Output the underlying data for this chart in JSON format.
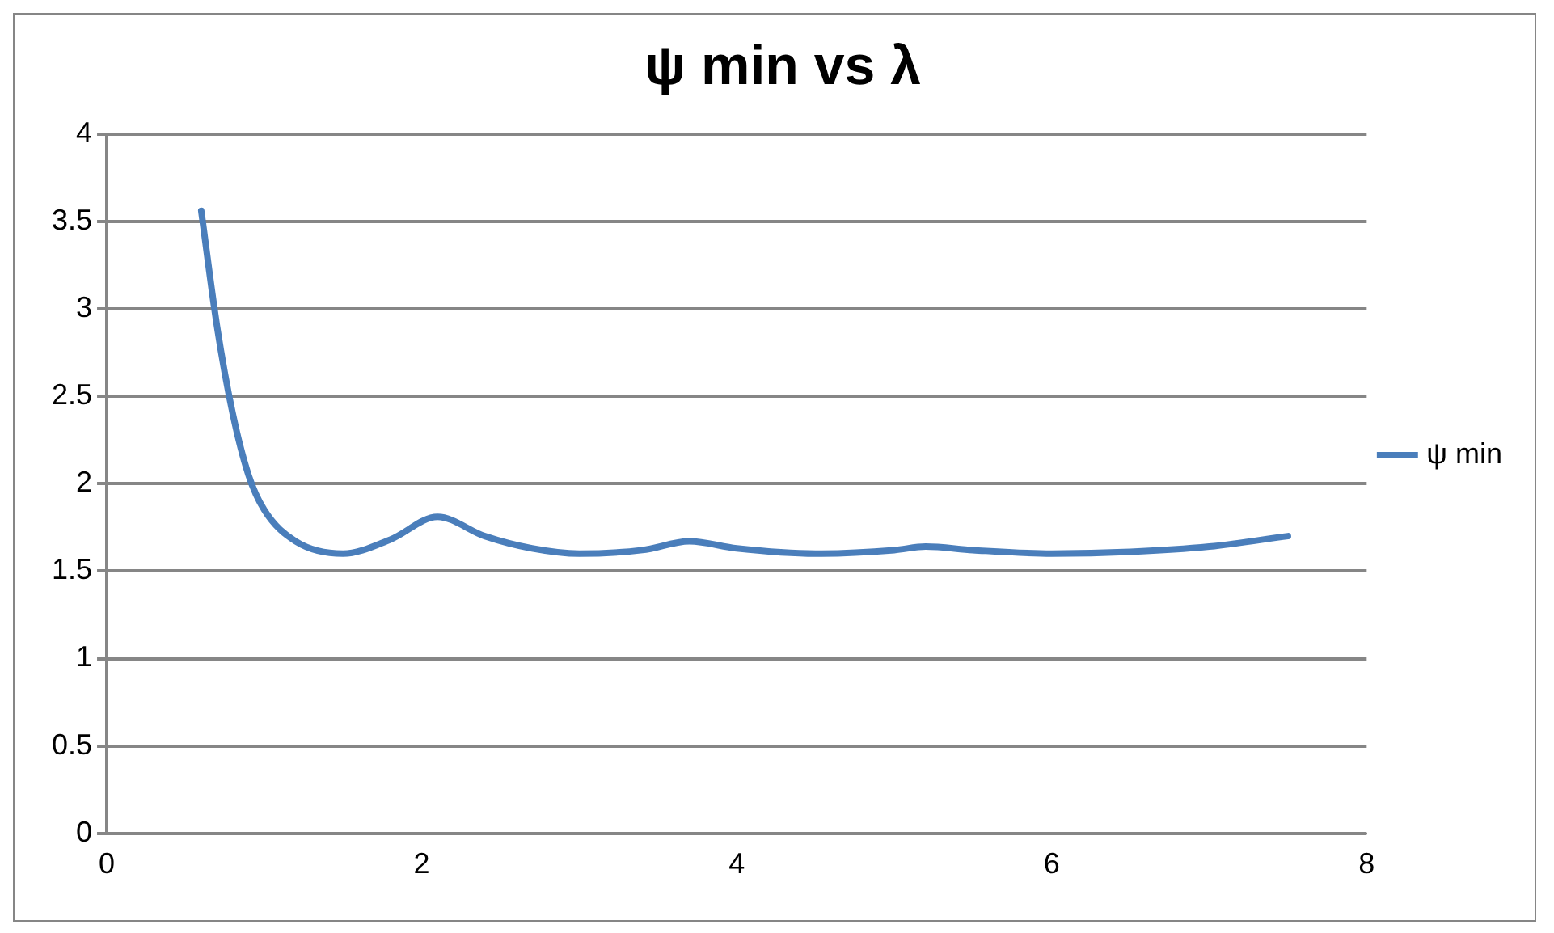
{
  "chart_data": {
    "type": "line",
    "title": "ψ min vs λ",
    "x": [
      0.6,
      0.7,
      0.8,
      0.9,
      1.0,
      1.2,
      1.5,
      1.8,
      2.1,
      2.4,
      2.7,
      3.0,
      3.4,
      3.7,
      4.0,
      4.5,
      5.0,
      5.2,
      5.5,
      6.0,
      6.5,
      7.0,
      7.5
    ],
    "series": [
      {
        "name": "ψ min",
        "color": "#4a7ebb",
        "values": [
          3.56,
          2.9,
          2.4,
          2.05,
          1.85,
          1.67,
          1.6,
          1.68,
          1.81,
          1.7,
          1.63,
          1.6,
          1.62,
          1.67,
          1.63,
          1.6,
          1.62,
          1.64,
          1.62,
          1.6,
          1.61,
          1.64,
          1.7
        ]
      }
    ],
    "xlim": [
      0,
      8
    ],
    "xticks": [
      0,
      2,
      4,
      6,
      8
    ],
    "ylim": [
      0,
      4
    ],
    "yticks": [
      0,
      0.5,
      1,
      1.5,
      2,
      2.5,
      3,
      3.5,
      4
    ],
    "grid": "y",
    "legend": "right",
    "marker": "none",
    "line_style": "solid"
  }
}
